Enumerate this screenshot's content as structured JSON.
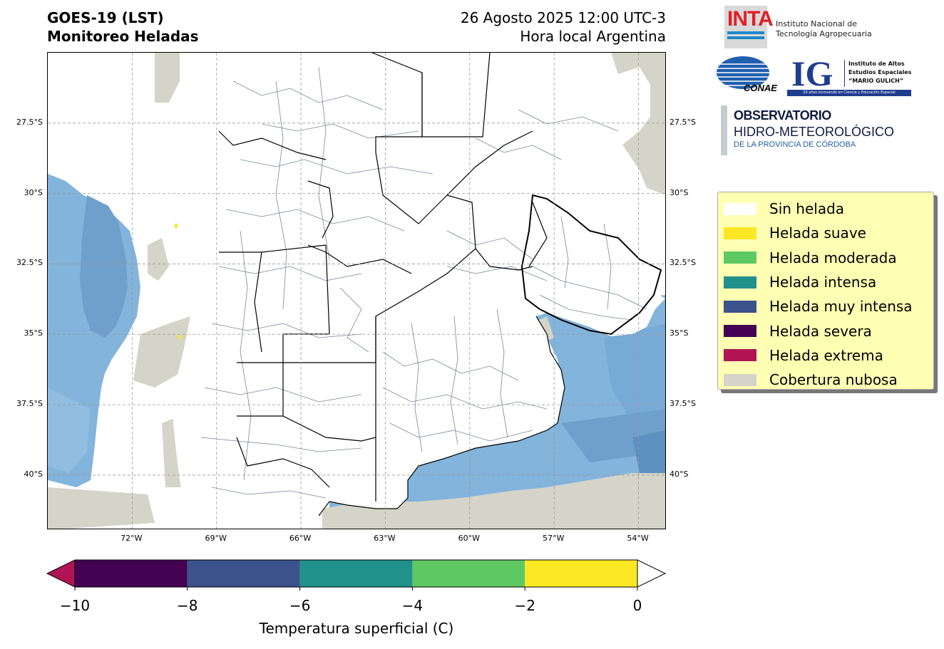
{
  "header": {
    "title_line1": "GOES-19 (LST)",
    "title_line2": "Monitoreo Heladas",
    "date_line1": "26 Agosto 2025 12:00 UTC-3",
    "date_line2": "Hora local Argentina"
  },
  "logos": {
    "inta": {
      "mark": "INTA",
      "line1": "Instituto Nacional de",
      "line2": "Tecnología Agropecuaria"
    },
    "conae": {
      "mark": "CONAE"
    },
    "ig": {
      "mark": "IG",
      "line1": "Instituto de Altos",
      "line2": "Estudios Espaciales",
      "line3": "“MARIO GULICH”",
      "bar": "20 años innovando en Ciencia y Educación Espacial"
    },
    "observatorio": {
      "line1": "OBSERVATORIO",
      "line2": "HIDRO-METEOROLÓGICO",
      "line3": "DE LA PROVINCIA DE CÓRDOBA"
    }
  },
  "map": {
    "lat_ticks": [
      "27.5°S",
      "30°S",
      "32.5°S",
      "35°S",
      "37.5°S",
      "40°S"
    ],
    "lat_values": [
      -27.5,
      -30,
      -32.5,
      -35,
      -37.5,
      -40
    ],
    "lon_ticks": [
      "72°W",
      "69°W",
      "66°W",
      "63°W",
      "60°W",
      "57°W",
      "54°W"
    ],
    "lon_values": [
      -72,
      -69,
      -66,
      -63,
      -60,
      -57,
      -54
    ],
    "extent": {
      "lon_min": -75,
      "lon_max": -53,
      "lat_min": -41.95,
      "lat_max": -25
    },
    "ocean_color": "#82b4dc",
    "ocean_dark_color": "#6fa0cc",
    "cloud_color": "#d4d4c8"
  },
  "legend": {
    "items": [
      {
        "label": "Sin helada",
        "color": "#ffffff"
      },
      {
        "label": "Helada suave",
        "color": "#fde725"
      },
      {
        "label": "Helada moderada",
        "color": "#5ec962"
      },
      {
        "label": "Helada intensa",
        "color": "#21918c"
      },
      {
        "label": "Helada muy intensa",
        "color": "#3b528b"
      },
      {
        "label": "Helada severa",
        "color": "#440154"
      },
      {
        "label": "Helada extrema",
        "color": "#b01455"
      },
      {
        "label": "Cobertura nubosa",
        "color": "#d4d4c8"
      }
    ]
  },
  "colorbar": {
    "label": "Temperatura superficial (C)",
    "ticks": [
      "−10",
      "−8",
      "−6",
      "−4",
      "−2",
      "0"
    ],
    "tick_values": [
      -10,
      -8,
      -6,
      -4,
      -2,
      0
    ],
    "segments": [
      {
        "from": -10,
        "to": -8,
        "color": "#440154"
      },
      {
        "from": -8,
        "to": -6,
        "color": "#3b528b"
      },
      {
        "from": -6,
        "to": -4,
        "color": "#21918c"
      },
      {
        "from": -4,
        "to": -2,
        "color": "#5ec962"
      },
      {
        "from": -2,
        "to": 0,
        "color": "#fde725"
      }
    ],
    "under_color": "#b01455",
    "over_color": "#ffffff"
  }
}
